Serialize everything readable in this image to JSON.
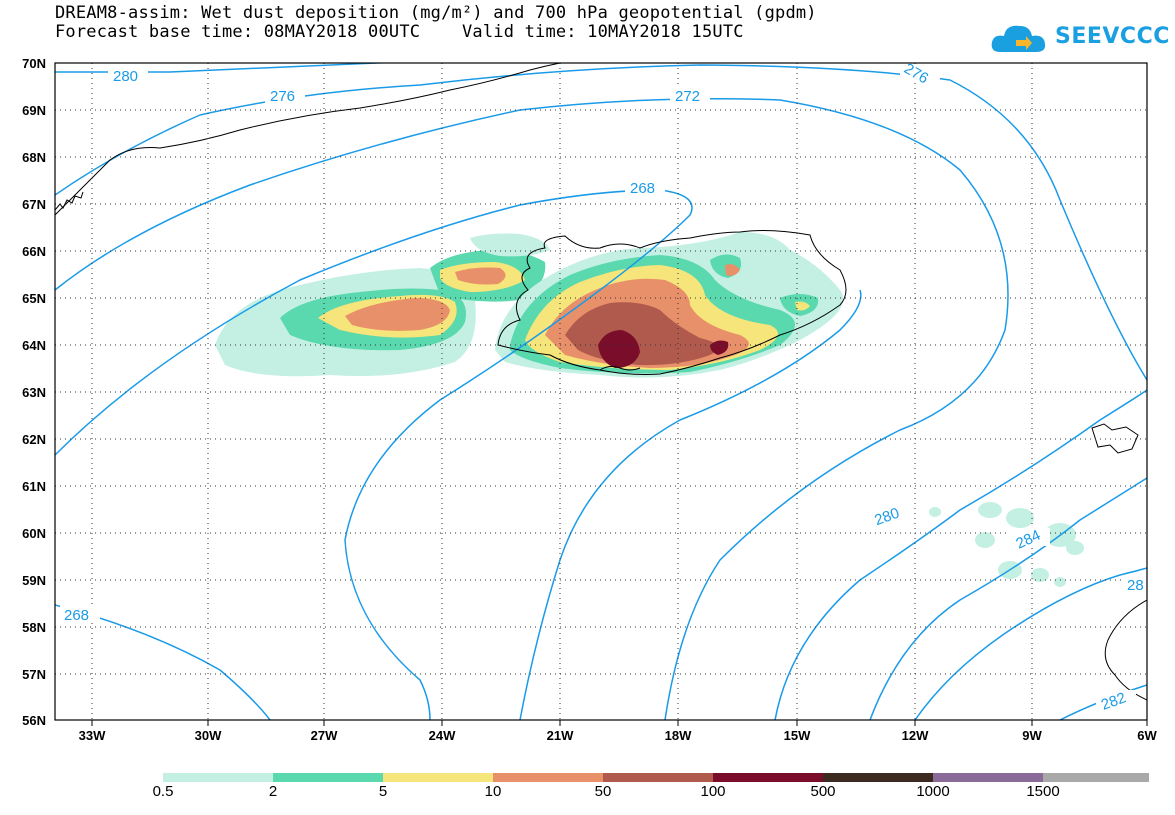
{
  "title": {
    "line1": "DREAM8-assim: Wet dust deposition (mg/m²) and 700 hPa geopotential (gpdm)",
    "line2": "Forecast base time: 08MAY2018 00UTC    Valid time: 10MAY2018 15UTC"
  },
  "logo": {
    "text": "SEEVCCC",
    "icon": "cloud-icon",
    "color": "#1aa0e0"
  },
  "map": {
    "lat_labels": [
      "70N",
      "69N",
      "68N",
      "67N",
      "66N",
      "65N",
      "64N",
      "63N",
      "62N",
      "61N",
      "60N",
      "59N",
      "58N",
      "57N",
      "56N"
    ],
    "lon_labels": [
      "33W",
      "30W",
      "27W",
      "24W",
      "21W",
      "18W",
      "15W",
      "12W",
      "9W",
      "6W"
    ],
    "contour_color": "#1a9be8",
    "contour_labels": [
      "280",
      "276",
      "272",
      "268",
      "276",
      "268",
      "280",
      "284",
      "28",
      "282"
    ]
  },
  "colorbar": {
    "labels": [
      "0.5",
      "2",
      "5",
      "10",
      "50",
      "100",
      "500",
      "1000",
      "1500"
    ],
    "colors": [
      "#c4f0e4",
      "#5ad8ae",
      "#f6e57a",
      "#e8906a",
      "#b05a4e",
      "#7a0e2a",
      "#3c2a20",
      "#8a6a98",
      "#a9a9a9"
    ]
  },
  "deposition_colors": {
    "very_light": "#c4f0e4",
    "light": "#5ad8ae",
    "yellow": "#f6e57a",
    "orange": "#e8906a",
    "brown": "#b05a4e",
    "dark_red": "#7a0e2a"
  }
}
